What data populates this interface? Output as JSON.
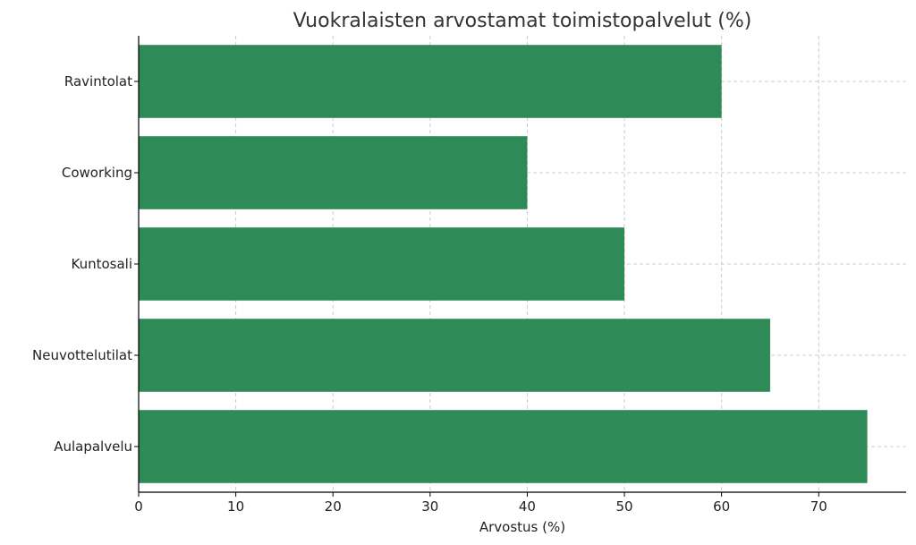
{
  "chart_data": {
    "type": "bar",
    "orientation": "horizontal",
    "title": "Vuokralaisten arvostamat toimistopalvelut (%)",
    "xlabel": "Arvostus (%)",
    "ylabel": "",
    "categories": [
      "Aulapalvelu",
      "Neuvottelutilat",
      "Kuntosali",
      "Coworking",
      "Ravintolat"
    ],
    "values": [
      75,
      65,
      50,
      40,
      60
    ],
    "xlim": [
      0,
      79
    ],
    "xticks": [
      "0",
      "10",
      "20",
      "30",
      "40",
      "50",
      "60",
      "70"
    ],
    "grid": true,
    "bar_color": "#2e8b57"
  }
}
